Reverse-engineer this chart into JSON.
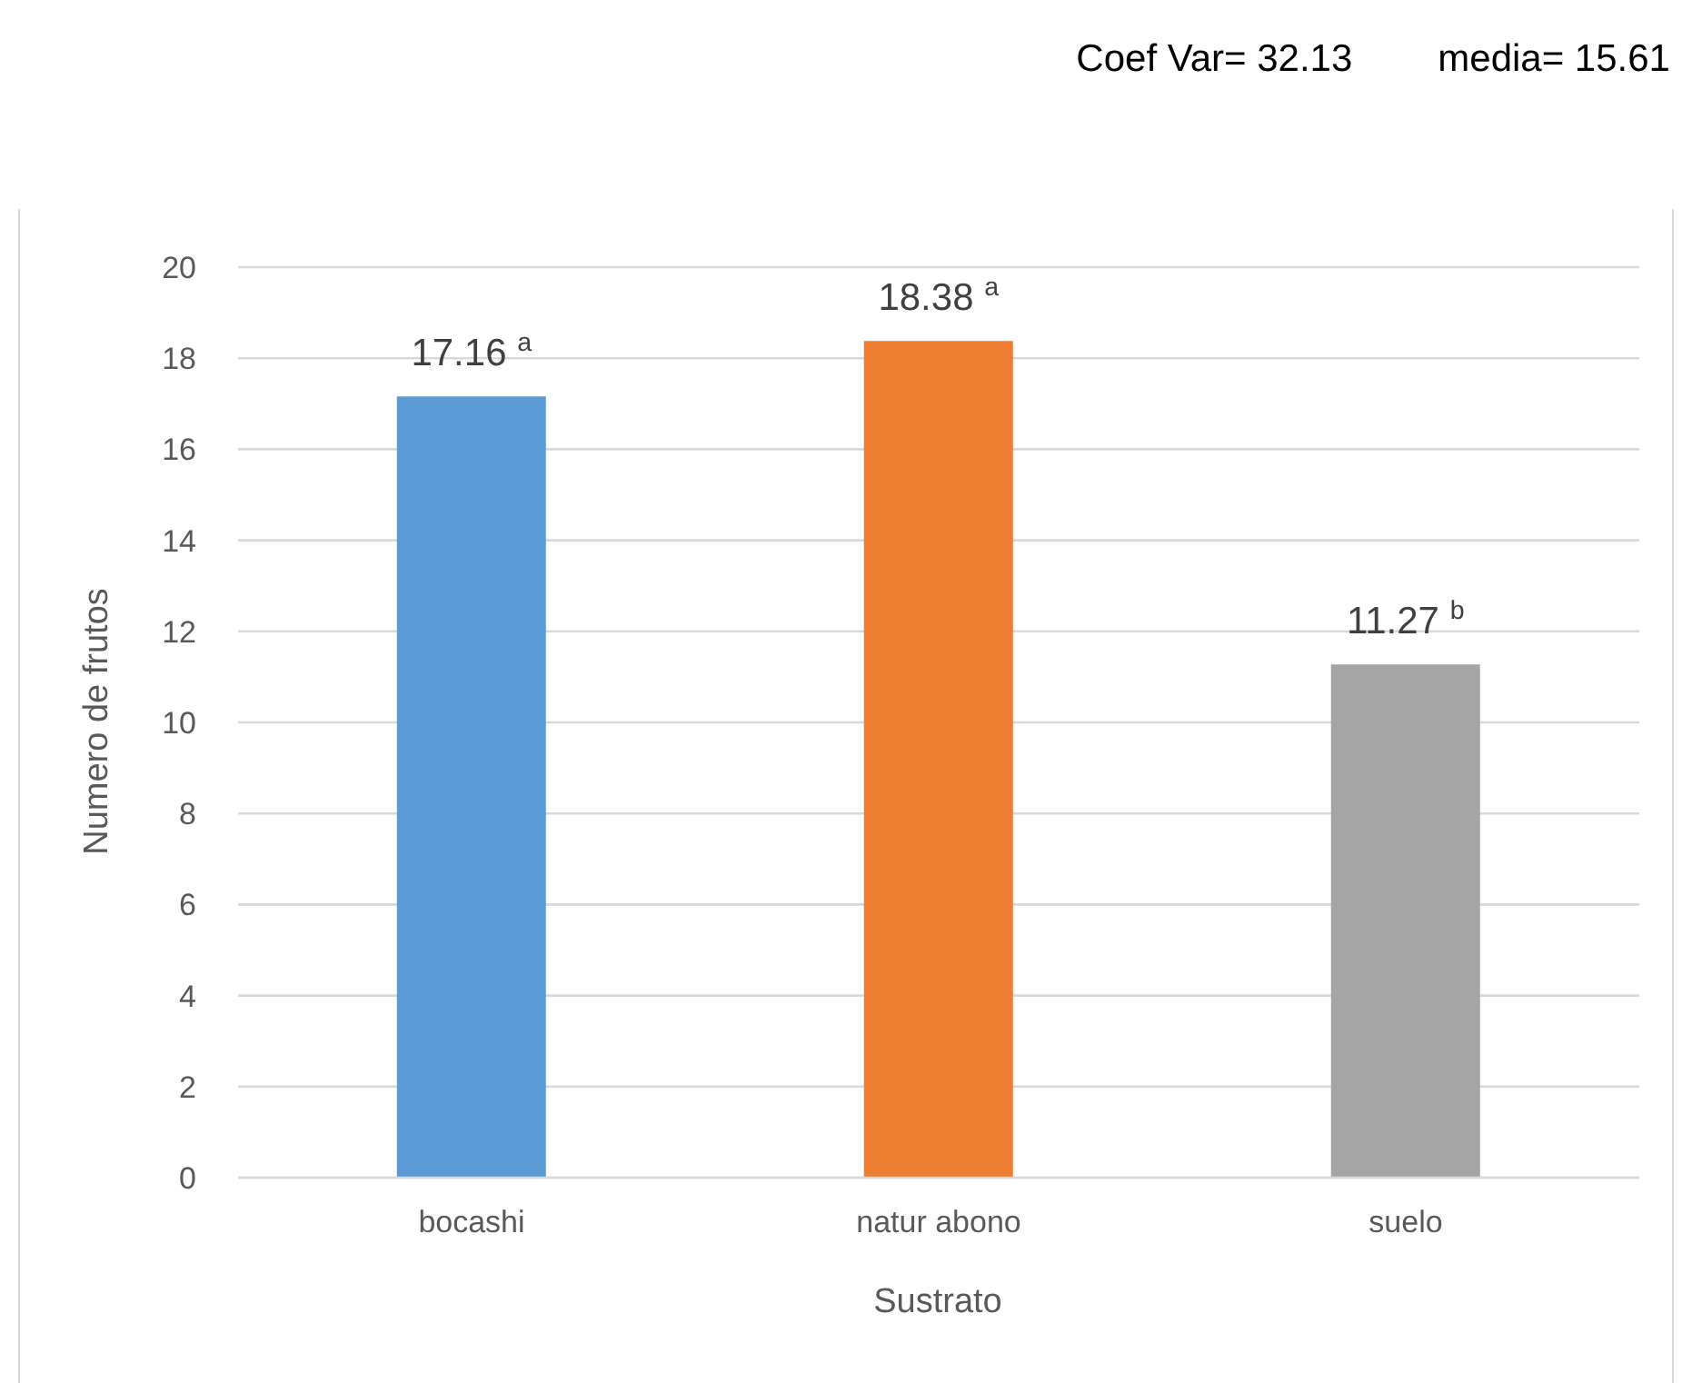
{
  "chart_data": {
    "type": "bar",
    "xlabel": "Sustrato",
    "ylabel": "Numero de frutos",
    "annotations": [
      "Coef Var= 32.13",
      "media= 15.61"
    ],
    "categories": [
      "bocashi",
      "natur abono",
      "suelo"
    ],
    "values": [
      17.16,
      18.38,
      11.27
    ],
    "colors": [
      "#5b9bd5",
      "#ed7d31",
      "#a5a5a5"
    ],
    "value_labels": [
      "17.16 $^{a}$",
      "18.38 $^{a}$",
      "11.27 $^{b}$"
    ],
    "ylim": [
      0,
      20
    ],
    "yticks": [
      0,
      2,
      4,
      6,
      8,
      10,
      12,
      14,
      16,
      18,
      20
    ],
    "grid": "y"
  }
}
